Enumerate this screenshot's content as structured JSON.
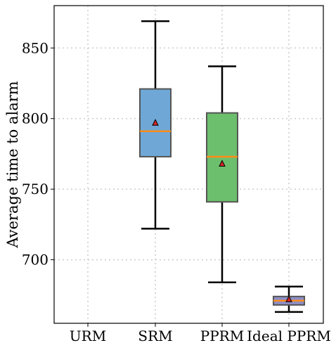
{
  "chart_data": {
    "type": "box",
    "title": "",
    "xlabel": "",
    "ylabel": "Average time to alarm",
    "categories": [
      "URM",
      "SRM",
      "PPRM",
      "Ideal PPRM"
    ],
    "yticks": [
      700,
      750,
      800,
      850
    ],
    "ylim": [
      655,
      880
    ],
    "grid": true,
    "boxes": [
      {
        "category": "URM",
        "present": false
      },
      {
        "category": "SRM",
        "present": true,
        "whisker_low": 722,
        "q1": 773,
        "median": 791,
        "q3": 821,
        "whisker_high": 869,
        "mean": 797,
        "color": "#6fa8d6"
      },
      {
        "category": "PPRM",
        "present": true,
        "whisker_low": 684,
        "q1": 741,
        "median": 773,
        "q3": 804,
        "whisker_high": 837,
        "mean": 768,
        "color": "#6cbf6c"
      },
      {
        "category": "Ideal PPRM",
        "present": true,
        "whisker_low": 663,
        "q1": 668,
        "median": 671,
        "q3": 674,
        "whisker_high": 681,
        "mean": 672,
        "color": "#8d8fc8"
      }
    ],
    "colors": {
      "median": "#ff8c1a",
      "mean_marker": "#d62728",
      "box_edge": "#555555",
      "whisker": "#000000",
      "grid": "#cccccc"
    }
  }
}
